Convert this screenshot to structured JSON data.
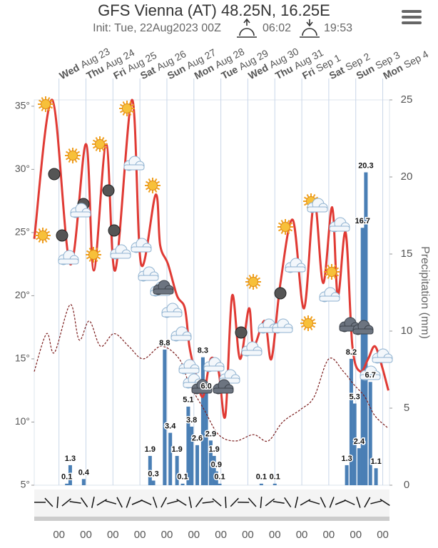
{
  "chart_data": {
    "type": "meteogram",
    "title": "GFS Vienna (AT) 48.25N, 16.25E",
    "subtitle": "Init: Tue, 22Aug2023 00Z",
    "sunrise": "06:02",
    "sunset": "19:53",
    "y2_label": "Precipitation (mm)",
    "xlim": [
      2,
      318
    ],
    "days": [
      {
        "value": 24,
        "weekday": "Wed",
        "date": "Aug 23",
        "hour": "00"
      },
      {
        "value": 48,
        "weekday": "Thu",
        "date": "Aug 24",
        "hour": "00"
      },
      {
        "value": 72,
        "weekday": "Fri",
        "date": "Aug 25",
        "hour": "00"
      },
      {
        "value": 96,
        "weekday": "Sat",
        "date": "Aug 26",
        "hour": "00"
      },
      {
        "value": 120,
        "weekday": "Sun",
        "date": "Aug 27",
        "hour": "00"
      },
      {
        "value": 144,
        "weekday": "Mon",
        "date": "Aug 28",
        "hour": "00"
      },
      {
        "value": 168,
        "weekday": "Tue",
        "date": "Aug 29",
        "hour": "00"
      },
      {
        "value": 192,
        "weekday": "Wed",
        "date": "Aug 30",
        "hour": "00"
      },
      {
        "value": 216,
        "weekday": "Thu",
        "date": "Aug 31",
        "hour": "00"
      },
      {
        "value": 240,
        "weekday": "Fri",
        "date": "Sep 1",
        "hour": "00"
      },
      {
        "value": 264,
        "weekday": "Sat",
        "date": "Sep 2",
        "hour": "00"
      },
      {
        "value": 288,
        "weekday": "Sun",
        "date": "Sep 3",
        "hour": "00"
      },
      {
        "value": 312,
        "weekday": "Mon",
        "date": "Sep 4",
        "hour": "00"
      }
    ],
    "ylim": [
      5,
      35.5
    ],
    "yticks": [
      {
        "value": 5,
        "label": "5°"
      },
      {
        "value": 10,
        "label": "10°"
      },
      {
        "value": 15,
        "label": "15°"
      },
      {
        "value": 20,
        "label": "20°"
      },
      {
        "value": 25,
        "label": "25°"
      },
      {
        "value": 30,
        "label": "30°"
      },
      {
        "value": 35,
        "label": "35°"
      }
    ],
    "y2lim": [
      0,
      25
    ],
    "y2ticks": [
      0,
      5,
      10,
      15,
      20,
      25
    ],
    "series": [
      {
        "name": "Temperature",
        "color": "#e03a34",
        "x": [
          2,
          18,
          34,
          48,
          55,
          66,
          74,
          89,
          97,
          110,
          114,
          121,
          129,
          136,
          140,
          145,
          152,
          159,
          166,
          172,
          178,
          185,
          193,
          197,
          207,
          213,
          221,
          232,
          242,
          251,
          259,
          267,
          272,
          279,
          285,
          292,
          299,
          305,
          311,
          317
        ],
        "values": [
          24.5,
          35.5,
          22.5,
          32,
          22,
          32,
          22,
          35.5,
          22.5,
          28,
          24,
          22.5,
          20,
          19,
          16,
          14,
          12,
          15,
          14,
          10.5,
          20,
          15,
          19,
          16,
          18,
          15,
          21,
          26,
          19,
          27.5,
          21,
          27,
          20,
          25,
          16,
          14,
          15,
          16,
          14.5,
          12.5
        ]
      },
      {
        "name": "Dew point",
        "color": "#7a1b1b",
        "x": [
          2,
          13,
          20,
          34,
          42,
          51,
          61,
          73,
          86,
          99,
          115,
          131,
          140,
          153,
          166,
          181,
          197,
          210,
          223,
          239,
          251,
          264,
          277,
          286,
          296,
          305,
          317
        ],
        "values": [
          14,
          17,
          15.5,
          19.3,
          16.5,
          18,
          16,
          17,
          16,
          15,
          16,
          15,
          13,
          11,
          9,
          8.5,
          9,
          8.5,
          10,
          11,
          12,
          15,
          14,
          13,
          12,
          10.5,
          9.5
        ]
      },
      {
        "name": "Precipitation",
        "color": "#4a7fb5",
        "axis": "y2",
        "x": [
          31,
          34,
          46,
          105,
          108,
          118,
          123,
          129,
          134,
          139,
          142,
          147,
          152,
          155,
          159,
          162,
          164,
          167,
          204,
          216,
          280,
          284,
          287,
          291,
          294,
          297,
          301,
          306
        ],
        "values": [
          0.1,
          1.3,
          0.4,
          1.9,
          0.3,
          8.8,
          3.4,
          1.9,
          0.1,
          5.1,
          3.8,
          2.6,
          8.3,
          6.0,
          2.9,
          1.9,
          0.9,
          0.1,
          0.1,
          0.1,
          1.3,
          8.2,
          5.3,
          2.4,
          16.7,
          20.3,
          6.7,
          1.1
        ],
        "value_labels": [
          "0.1",
          "1.3",
          "0.4",
          "1.9",
          "0.3",
          "8.8",
          "3.4",
          "1.9",
          "0.1",
          "5.1",
          "3.8",
          "2.6",
          "8.3",
          "6.0",
          "2.9",
          "1.9",
          "0.9",
          "0.1",
          "0.1",
          "0.1",
          "1.3",
          "8.2",
          "5.3",
          "2.4",
          "16.7",
          "20.3",
          "6.7",
          "1.1"
        ]
      }
    ]
  }
}
